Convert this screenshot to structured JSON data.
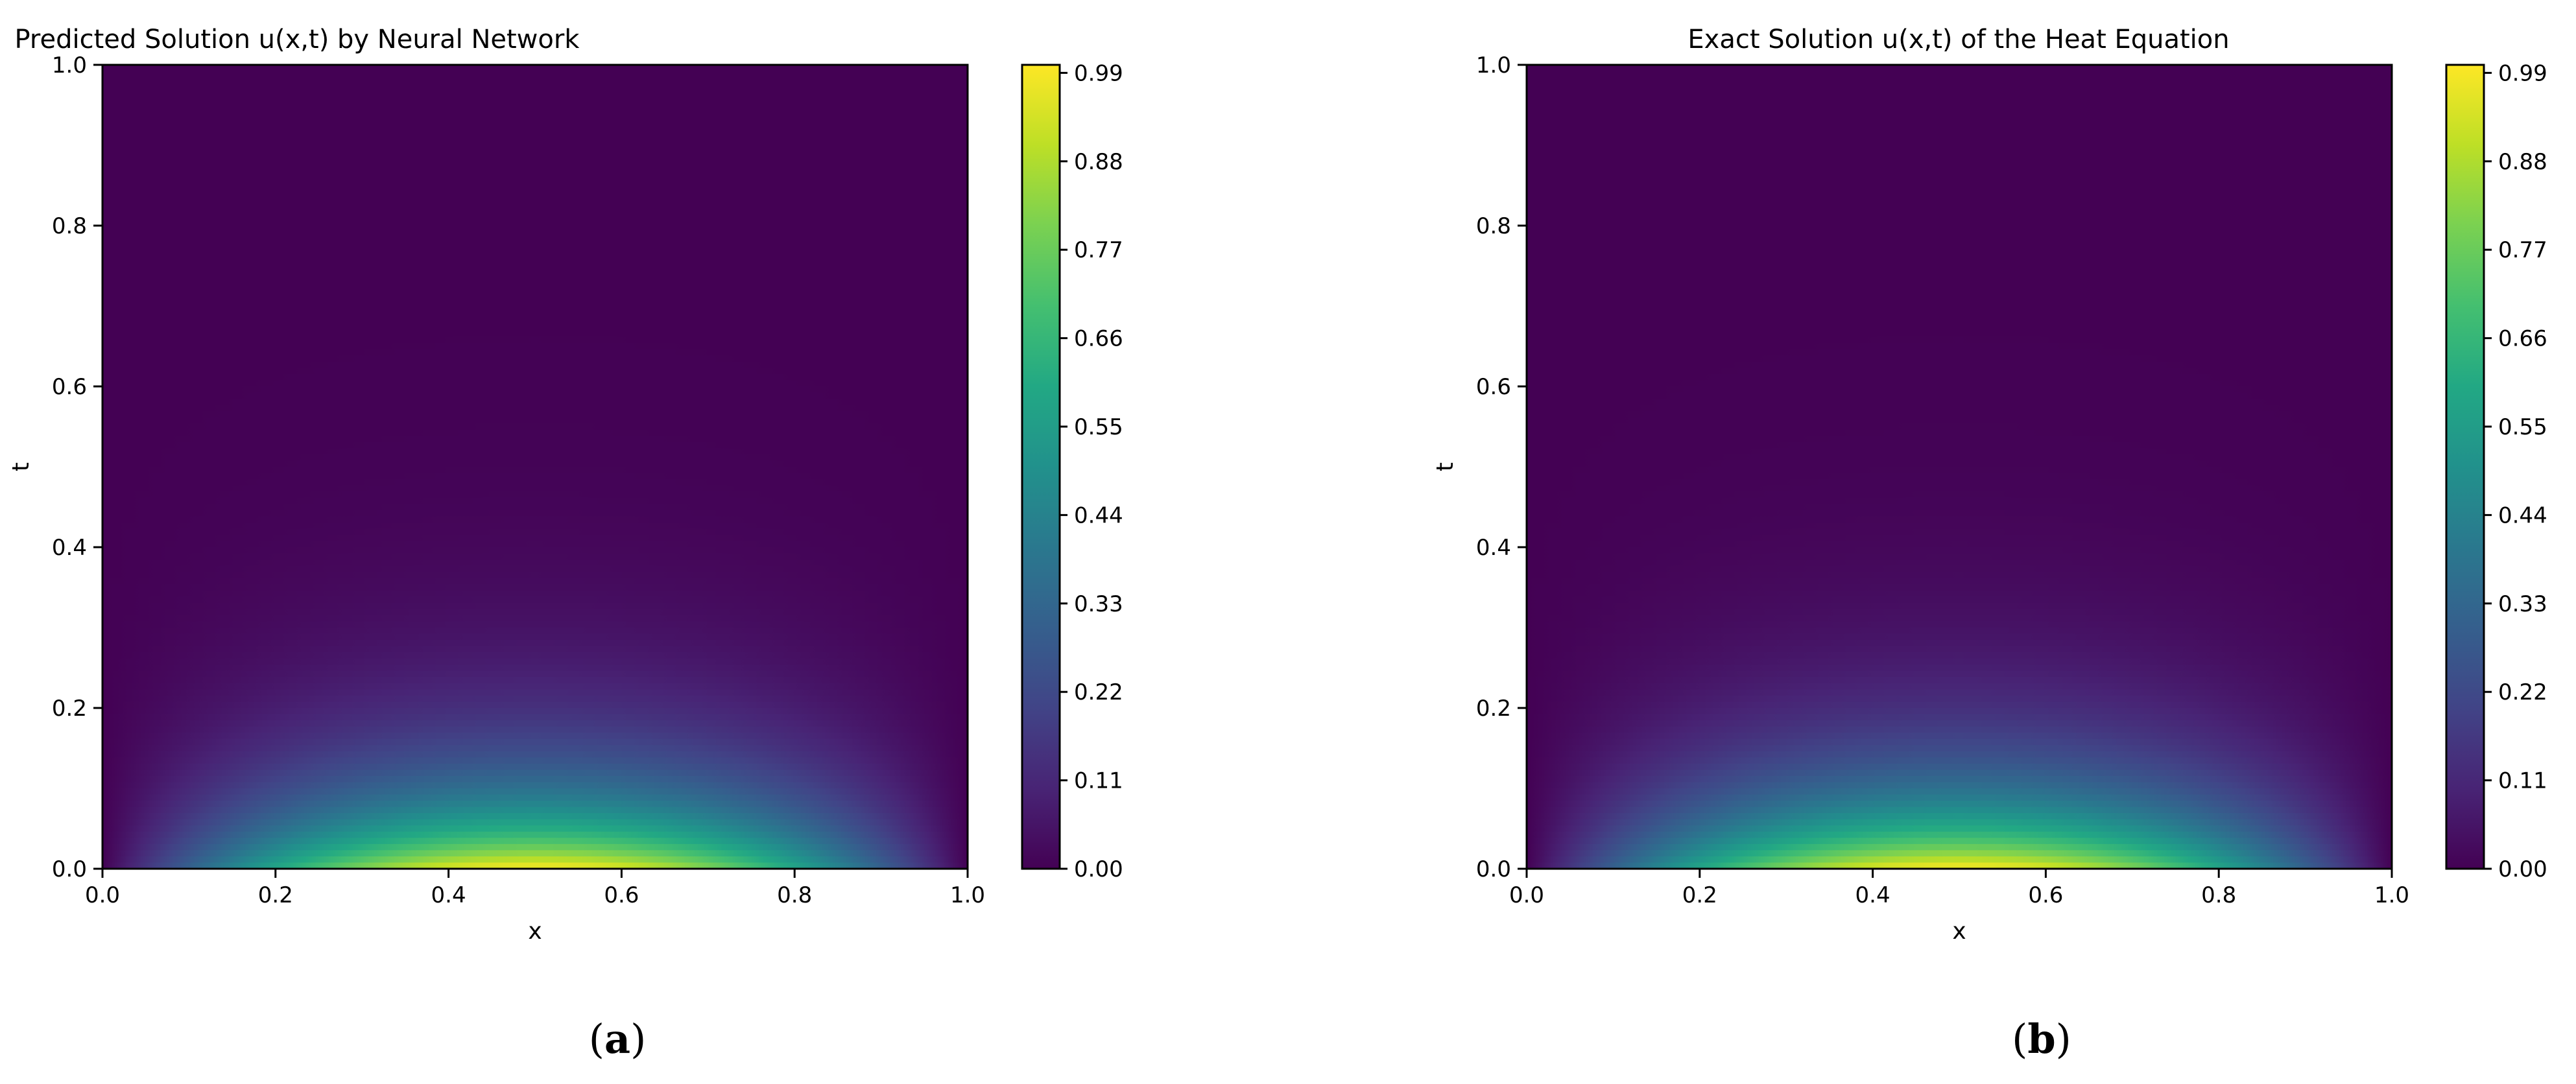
{
  "chart_data": [
    {
      "type": "heatmap",
      "panel_label": "a",
      "title": "Predicted Solution u(x,t) by Neural Network",
      "xlabel": "x",
      "ylabel": "t",
      "xlim": [
        0.0,
        1.0
      ],
      "ylim": [
        0.0,
        1.0
      ],
      "x_ticks": [
        "0.0",
        "0.2",
        "0.4",
        "0.6",
        "0.8",
        "1.0"
      ],
      "y_ticks": [
        "0.0",
        "0.2",
        "0.4",
        "0.6",
        "0.8",
        "1.0"
      ],
      "colormap": "viridis",
      "color_range": [
        0.0,
        1.0
      ],
      "colorbar_ticks": [
        "0.00",
        "0.11",
        "0.22",
        "0.33",
        "0.44",
        "0.55",
        "0.66",
        "0.77",
        "0.88",
        "0.99"
      ],
      "function": "u(x,t) = exp(-pi^2 t) sin(pi x)",
      "grid": false
    },
    {
      "type": "heatmap",
      "panel_label": "b",
      "title": "Exact Solution u(x,t) of the Heat Equation",
      "xlabel": "x",
      "ylabel": "t",
      "xlim": [
        0.0,
        1.0
      ],
      "ylim": [
        0.0,
        1.0
      ],
      "x_ticks": [
        "0.0",
        "0.2",
        "0.4",
        "0.6",
        "0.8",
        "1.0"
      ],
      "y_ticks": [
        "0.0",
        "0.2",
        "0.4",
        "0.6",
        "0.8",
        "1.0"
      ],
      "colormap": "viridis",
      "color_range": [
        0.0,
        1.0
      ],
      "colorbar_ticks": [
        "0.00",
        "0.11",
        "0.22",
        "0.33",
        "0.44",
        "0.55",
        "0.66",
        "0.77",
        "0.88",
        "0.99"
      ],
      "function": "u(x,t) = exp(-pi^2 t) sin(pi x)",
      "grid": false
    }
  ],
  "panels": [
    {
      "label_open": "(",
      "label": "a",
      "label_close": ")"
    },
    {
      "label_open": "(",
      "label": "b",
      "label_close": ")"
    }
  ]
}
